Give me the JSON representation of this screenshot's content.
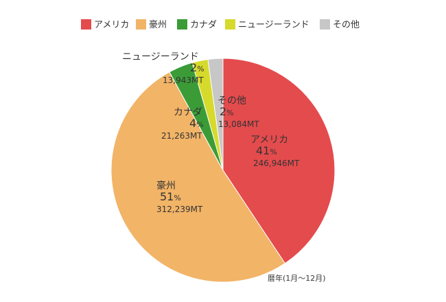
{
  "chart_data": {
    "type": "pie",
    "note": "暦年(1月〜12月)",
    "percent_unit": "%",
    "legend_position": "top",
    "slices": [
      {
        "name": "アメリカ",
        "percent": "41",
        "value": 246946,
        "value_label": "246,946MT",
        "color": "#e44b4d"
      },
      {
        "name": "豪州",
        "percent": "51",
        "value": 312239,
        "value_label": "312,239MT",
        "color": "#f2b467"
      },
      {
        "name": "カナダ",
        "percent": "4",
        "value": 21263,
        "value_label": "21,263MT",
        "color": "#3b9c37"
      },
      {
        "name": "ニュージーランド",
        "percent": "2",
        "value": 13943,
        "value_label": "13,943MT",
        "color": "#d6da2c"
      },
      {
        "name": "その他",
        "percent": "2",
        "value": 13084,
        "value_label": "13,084MT",
        "color": "#c7c7c7"
      }
    ]
  }
}
